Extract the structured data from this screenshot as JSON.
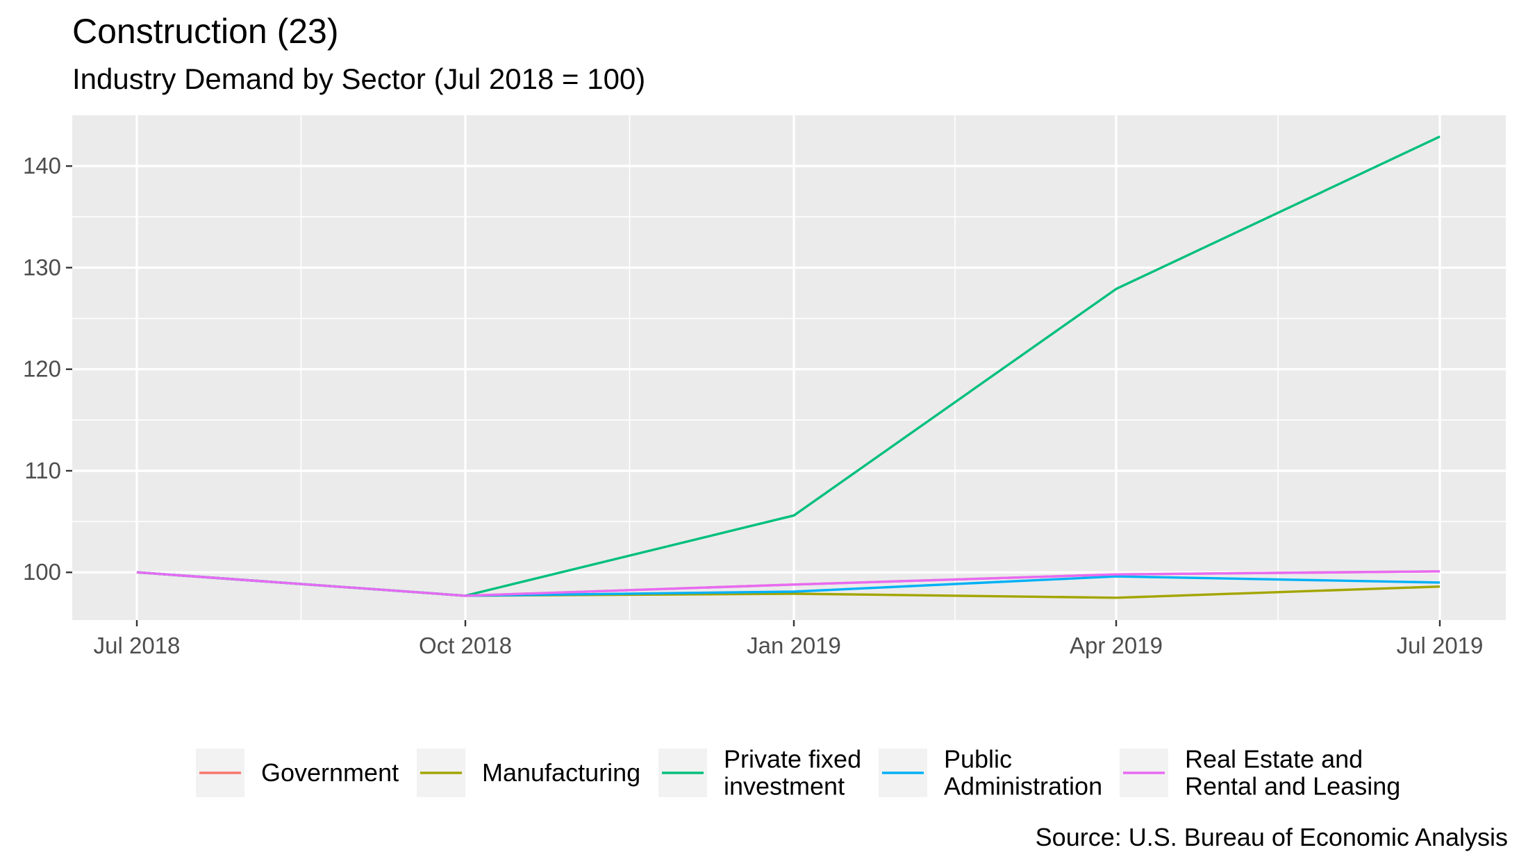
{
  "title": "Construction (23)",
  "subtitle": "Industry Demand by Sector (Jul 2018 = 100)",
  "caption": "Source: U.S. Bureau of Economic Analysis",
  "chart_data": {
    "type": "line",
    "title": "Construction (23)",
    "subtitle": "Industry Demand by Sector (Jul 2018 = 100)",
    "xlabel": "",
    "ylabel": "",
    "x": [
      "Jul 2018",
      "Oct 2018",
      "Jan 2019",
      "Apr 2019",
      "Jul 2019"
    ],
    "x_ticks": [
      "Jul 2018",
      "Oct 2018",
      "Jan 2019",
      "Apr 2019",
      "Jul 2019"
    ],
    "y_ticks": [
      100,
      110,
      120,
      130,
      140
    ],
    "ylim": [
      95.3,
      145
    ],
    "grid": true,
    "legend_position": "bottom",
    "series": [
      {
        "name": "Government",
        "color": "#F8766D",
        "values": [
          100,
          97.7,
          98.8,
          99.8,
          100.1
        ]
      },
      {
        "name": "Manufacturing",
        "color": "#A3A500",
        "values": [
          100,
          97.7,
          97.9,
          97.5,
          98.6
        ]
      },
      {
        "name": "Private fixed investment",
        "color": "#00BF7D",
        "values": [
          100,
          97.7,
          105.6,
          127.9,
          142.9
        ]
      },
      {
        "name": "Public Administration",
        "color": "#00B0F6",
        "values": [
          100,
          97.7,
          98.1,
          99.6,
          99.0
        ]
      },
      {
        "name": "Real Estate and Rental and Leasing",
        "color": "#E76BF3",
        "values": [
          100,
          97.7,
          98.8,
          99.8,
          100.1
        ]
      }
    ],
    "legend": [
      {
        "lines": [
          "Government"
        ],
        "color": "#F8766D"
      },
      {
        "lines": [
          "Manufacturing"
        ],
        "color": "#A3A500"
      },
      {
        "lines": [
          "Private fixed",
          "investment"
        ],
        "color": "#00BF7D"
      },
      {
        "lines": [
          "Public",
          "Administration"
        ],
        "color": "#00B0F6"
      },
      {
        "lines": [
          "Real Estate and",
          "Rental and Leasing"
        ],
        "color": "#E76BF3"
      }
    ]
  },
  "colors": {
    "panel_background": "#EBEBEB",
    "grid": "#FFFFFF",
    "tick_text": "#4D4D4D",
    "legend_key_background": "#F2F2F2"
  }
}
